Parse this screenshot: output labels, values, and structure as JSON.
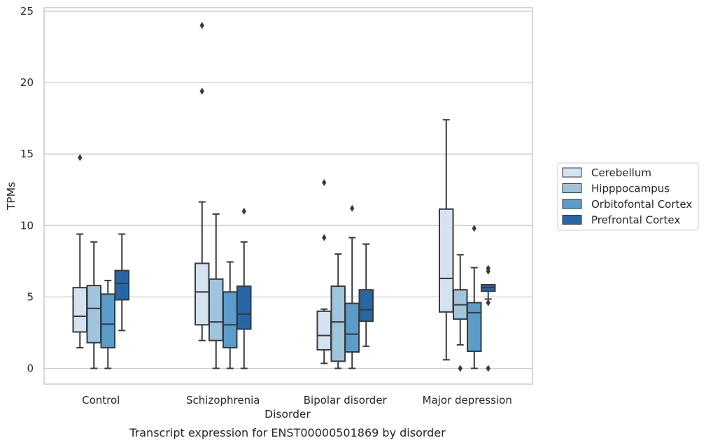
{
  "chart_data": {
    "type": "box",
    "title": "",
    "xlabel": "Disorder",
    "ylabel": "TPMs",
    "caption": "Transcript expression for ENST00000501869 by disorder",
    "categories": [
      "Control",
      "Schizophrenia",
      "Bipolar disorder",
      "Major depression"
    ],
    "ylim": [
      -1.1,
      25.3
    ],
    "yticks": [
      0,
      5,
      10,
      15,
      20,
      25
    ],
    "grid": "horizontal",
    "legend_position": "right",
    "series": [
      {
        "name": "Cerebellum",
        "color": "#d4e3f2",
        "boxes": [
          {
            "whislo": 1.45,
            "q1": 2.55,
            "med": 3.65,
            "q3": 5.65,
            "whishi": 9.4,
            "fliers": [
              14.75
            ]
          },
          {
            "whislo": 1.95,
            "q1": 3.05,
            "med": 5.35,
            "q3": 7.35,
            "whishi": 11.65,
            "fliers": [
              19.4,
              24.0
            ]
          },
          {
            "whislo": 0.35,
            "q1": 1.3,
            "med": 2.3,
            "q3": 4.0,
            "whishi": 4.15,
            "fliers": [
              9.15,
              13.0
            ]
          },
          {
            "whislo": 0.6,
            "q1": 3.95,
            "med": 6.3,
            "q3": 11.15,
            "whishi": 17.4,
            "fliers": []
          }
        ]
      },
      {
        "name": "Hipppocampus",
        "color": "#9ec5de",
        "boxes": [
          {
            "whislo": 0.0,
            "q1": 1.8,
            "med": 4.2,
            "q3": 5.8,
            "whishi": 8.85,
            "fliers": []
          },
          {
            "whislo": 0.0,
            "q1": 1.95,
            "med": 3.25,
            "q3": 6.25,
            "whishi": 10.8,
            "fliers": []
          },
          {
            "whislo": 0.0,
            "q1": 0.5,
            "med": 3.25,
            "q3": 5.75,
            "whishi": 8.0,
            "fliers": []
          },
          {
            "whislo": 1.65,
            "q1": 3.45,
            "med": 4.45,
            "q3": 5.5,
            "whishi": 7.95,
            "fliers": [
              0.0
            ]
          }
        ]
      },
      {
        "name": "Orbitofontal Cortex",
        "color": "#5a9ccb",
        "boxes": [
          {
            "whislo": 0.0,
            "q1": 1.45,
            "med": 3.1,
            "q3": 5.2,
            "whishi": 6.15,
            "fliers": []
          },
          {
            "whislo": 0.0,
            "q1": 1.45,
            "med": 3.05,
            "q3": 5.35,
            "whishi": 7.45,
            "fliers": []
          },
          {
            "whislo": 0.0,
            "q1": 1.15,
            "med": 2.4,
            "q3": 4.55,
            "whishi": 9.15,
            "fliers": [
              11.2
            ]
          },
          {
            "whislo": 0.0,
            "q1": 1.2,
            "med": 3.9,
            "q3": 4.6,
            "whishi": 7.05,
            "fliers": [
              9.8
            ]
          }
        ]
      },
      {
        "name": "Prefrontal Cortex",
        "color": "#2667a8",
        "boxes": [
          {
            "whislo": 2.65,
            "q1": 4.8,
            "med": 5.95,
            "q3": 6.85,
            "whishi": 9.4,
            "fliers": []
          },
          {
            "whislo": 0.0,
            "q1": 2.75,
            "med": 3.8,
            "q3": 5.75,
            "whishi": 8.85,
            "fliers": [
              11.0
            ]
          },
          {
            "whislo": 1.55,
            "q1": 3.3,
            "med": 4.1,
            "q3": 5.5,
            "whishi": 8.7,
            "fliers": []
          },
          {
            "whislo": 4.85,
            "q1": 5.4,
            "med": 5.65,
            "q3": 5.85,
            "whishi": 5.85,
            "fliers": [
              0.0,
              4.6,
              6.8,
              7.0
            ]
          }
        ]
      }
    ]
  }
}
